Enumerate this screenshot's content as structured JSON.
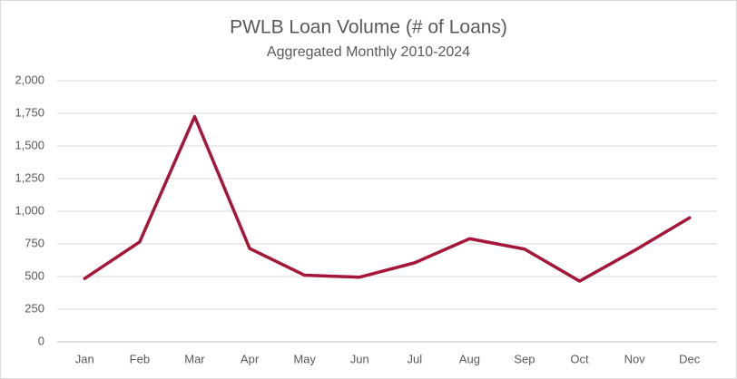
{
  "chart_data": {
    "type": "line",
    "title": "PWLB Loan Volume (# of Loans)",
    "subtitle": "Aggregated Monthly 2010-2024",
    "categories": [
      "Jan",
      "Feb",
      "Mar",
      "Apr",
      "May",
      "Jun",
      "Jul",
      "Aug",
      "Sep",
      "Oct",
      "Nov",
      "Dec"
    ],
    "values": [
      485,
      765,
      1725,
      715,
      510,
      495,
      605,
      790,
      710,
      465,
      700,
      950
    ],
    "color": "#a5173a",
    "ylim": [
      0,
      2000
    ],
    "yticks": [
      0,
      250,
      500,
      750,
      {
        "value": 1000,
        "label": "1,000"
      },
      {
        "value": 1250,
        "label": "1,250"
      },
      {
        "value": 1500,
        "label": "1,500"
      },
      {
        "value": 1750,
        "label": "1,750"
      },
      {
        "value": 2000,
        "label": "2,000"
      }
    ],
    "grid": true
  }
}
